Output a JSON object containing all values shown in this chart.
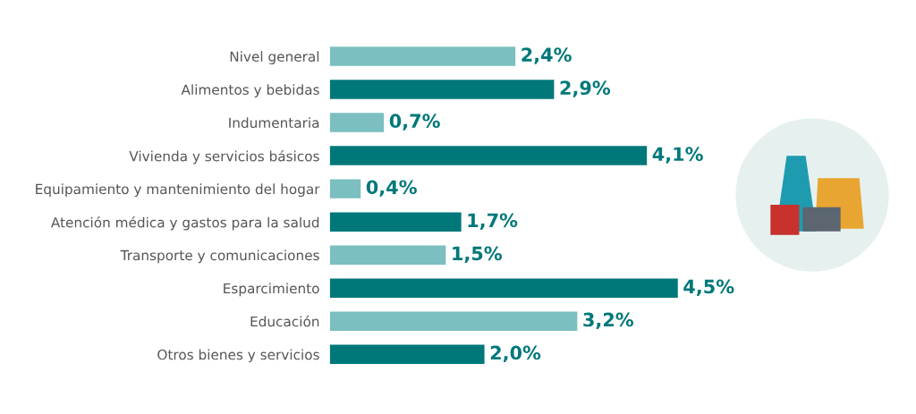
{
  "chart_data": {
    "type": "bar",
    "orientation": "horizontal",
    "categories": [
      "Nivel general",
      "Alimentos y bebidas",
      "Indumentaria",
      "Vivienda y servicios básicos",
      "Equipamiento y mantenimiento del hogar",
      "Atención médica y gastos para la salud",
      "Transporte y comunicaciones",
      "Esparcimiento",
      "Educación",
      "Otros bienes y servicios"
    ],
    "values": [
      2.4,
      2.9,
      0.7,
      4.1,
      0.4,
      1.7,
      1.5,
      4.5,
      3.2,
      2.0
    ],
    "colors": [
      "#7bbfc0",
      "#00787a",
      "#7bbfc0",
      "#00787a",
      "#7bbfc0",
      "#00787a",
      "#7bbfc0",
      "#00787a",
      "#7bbfc0",
      "#00787a"
    ],
    "value_labels": [
      "2,4%",
      "2,9%",
      "0,7%",
      "4,1%",
      "0,4%",
      "1,7%",
      "1,5%",
      "4,5%",
      "3,2%",
      "2,0%"
    ],
    "grid": false
  }
}
